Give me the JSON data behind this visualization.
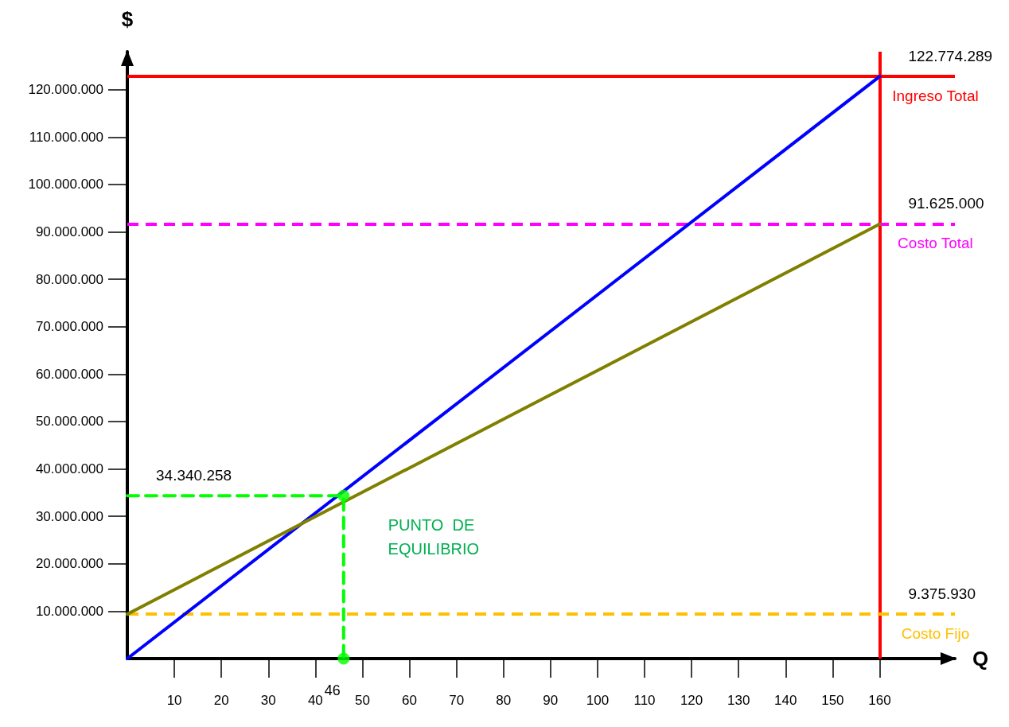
{
  "chart_data": {
    "type": "line",
    "xlabel": "Q",
    "ylabel": "$",
    "xlim": [
      0,
      176
    ],
    "ylim": [
      0,
      128000000
    ],
    "xticks": [
      10,
      20,
      30,
      40,
      50,
      60,
      70,
      80,
      90,
      100,
      110,
      120,
      130,
      140,
      150,
      160
    ],
    "yticks": [
      {
        "value": 10000000,
        "label": "10.000.000"
      },
      {
        "value": 20000000,
        "label": "20.000.000"
      },
      {
        "value": 30000000,
        "label": "30.000.000"
      },
      {
        "value": 40000000,
        "label": "40.000.000"
      },
      {
        "value": 50000000,
        "label": "50.000.000"
      },
      {
        "value": 60000000,
        "label": "60.000.000"
      },
      {
        "value": 70000000,
        "label": "70.000.000"
      },
      {
        "value": 80000000,
        "label": "80.000.000"
      },
      {
        "value": 90000000,
        "label": "90.000.000"
      },
      {
        "value": 100000000,
        "label": "100.000.000"
      },
      {
        "value": 110000000,
        "label": "110.000.000"
      },
      {
        "value": 120000000,
        "label": "120.000.000"
      }
    ],
    "series": [
      {
        "color": "#0000ff",
        "x": [
          0,
          160
        ],
        "values": [
          0,
          122774289
        ]
      },
      {
        "color": "#808000",
        "x": [
          0,
          160
        ],
        "values": [
          9375930,
          91625000
        ]
      },
      {
        "color": "#00ff00",
        "line_style": "dashed",
        "x": [
          0,
          46,
          46
        ],
        "values": [
          34340258,
          34340258,
          0
        ]
      },
      {
        "type": "scatter",
        "marker": "circle",
        "color": "#00ff00",
        "x": [
          46,
          46
        ],
        "values": [
          34340258,
          0
        ]
      }
    ],
    "ref_lines": [
      {
        "axis": "y",
        "value": 122774289,
        "label": "Ingreso Total",
        "color": "#ff0000",
        "line_style": "solid"
      },
      {
        "axis": "x",
        "value": 160,
        "color": "#ff0000",
        "line_style": "solid"
      },
      {
        "axis": "y",
        "value": 91625000,
        "label": "Costo Total",
        "color": "#ff00ff",
        "line_style": "dashed"
      },
      {
        "axis": "y",
        "value": 9375930,
        "label": "Costo Fijo",
        "color": "#ffc000",
        "line_style": "dashed"
      }
    ],
    "annotations": [
      {
        "text": "122.774.289",
        "x": 160,
        "y": 122774289
      },
      {
        "text": "91.625.000",
        "x": 160,
        "y": 91625000
      },
      {
        "text": "9.375.930",
        "x": 160,
        "y": 9375930
      },
      {
        "text": "34.340.258",
        "x": 0,
        "y": 34340258
      },
      {
        "text": "46",
        "x": 46,
        "y": 0
      },
      "PUNTO  DE EQUILIBRIO"
    ],
    "grid": false,
    "marker": "none",
    "line_style": "solid"
  }
}
